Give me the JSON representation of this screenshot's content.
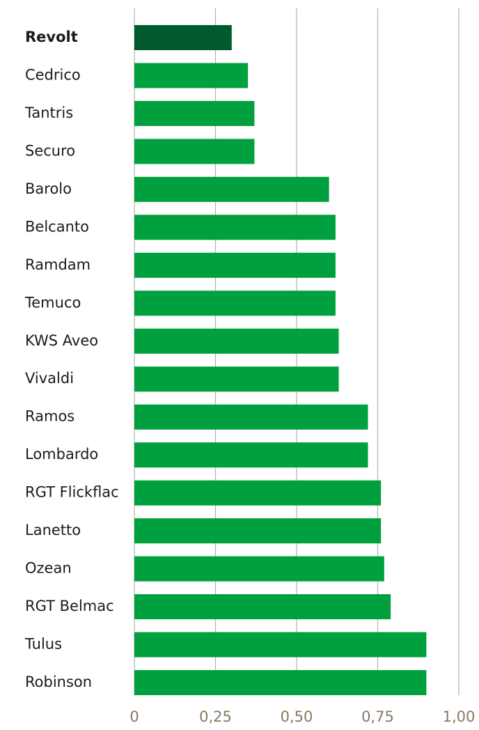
{
  "chart_data": {
    "type": "barh",
    "categories": [
      "Revolt",
      "Cedrico",
      "Tantris",
      "Securo",
      "Barolo",
      "Belcanto",
      "Ramdam",
      "Temuco",
      "KWS Aveo",
      "Vivaldi",
      "Ramos",
      "Lombardo",
      "RGT Flickflac",
      "Lanetto",
      "Ozean",
      "RGT Belmac",
      "Tulus",
      "Robinson"
    ],
    "values": [
      0.3,
      0.35,
      0.37,
      0.37,
      0.6,
      0.62,
      0.62,
      0.62,
      0.63,
      0.63,
      0.72,
      0.72,
      0.76,
      0.76,
      0.77,
      0.79,
      0.9,
      0.9
    ],
    "color": "#00a03e",
    "highlight_color": "#005a2e",
    "highlight_index": 0,
    "xlim": [
      0,
      1
    ],
    "xticks": [
      0,
      {
        "value": 0.25,
        "label": "0,25"
      },
      {
        "value": 0.5,
        "label": "0,50"
      },
      {
        "value": 0.75,
        "label": "0,75"
      },
      {
        "value": 1,
        "label": "1,00"
      }
    ],
    "grid": true
  }
}
